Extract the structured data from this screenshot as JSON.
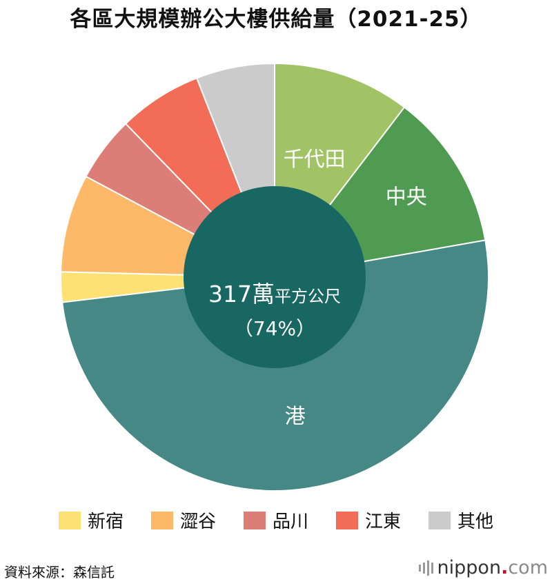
{
  "title": "各區大規模辦公大樓供給量（2021-25）",
  "chart_data": {
    "type": "pie",
    "title": "各區大規模辦公大樓供給量（2021-25）",
    "slices": [
      {
        "name": "千代田",
        "value": 10.5,
        "color": "#a1c366",
        "labeled": true
      },
      {
        "name": "中央",
        "value": 12.0,
        "color": "#4f9b52",
        "labeled": true
      },
      {
        "name": "港",
        "value": 51.5,
        "color": "#468885",
        "labeled": true
      },
      {
        "name": "新宿",
        "value": 2.3,
        "color": "#fde173",
        "labeled": false
      },
      {
        "name": "澀谷",
        "value": 7.5,
        "color": "#fdb967",
        "labeled": false
      },
      {
        "name": "品川",
        "value": 5.0,
        "color": "#dc7e77",
        "labeled": false
      },
      {
        "name": "江東",
        "value": 6.4,
        "color": "#f26c57",
        "labeled": false
      },
      {
        "name": "其他",
        "value": 6.0,
        "color": "#cbcbcb",
        "labeled": false
      }
    ],
    "center": {
      "value_text": "317萬",
      "unit_text": "平方公尺",
      "percent_text": "（74%）",
      "color": "#196763"
    },
    "legend_placement": "bottom"
  },
  "legend": [
    {
      "label": "新宿",
      "color": "#fde173"
    },
    {
      "label": "澀谷",
      "color": "#fdb967"
    },
    {
      "label": "品川",
      "color": "#dc7e77"
    },
    {
      "label": "江東",
      "color": "#f26c57"
    },
    {
      "label": "其他",
      "color": "#cbcbcb"
    }
  ],
  "footer": {
    "source": "資料來源：森信託",
    "brand_main": "nippon",
    "brand_dot": ".",
    "brand_tld": "com"
  }
}
